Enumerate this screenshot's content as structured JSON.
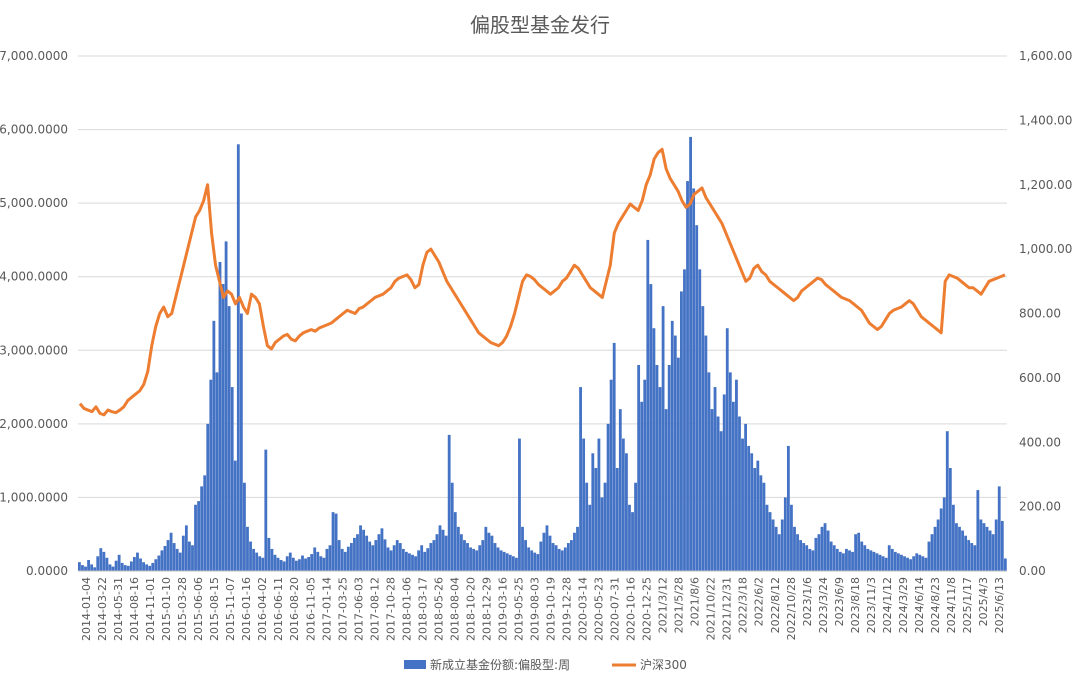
{
  "chart_data": {
    "type": "bar+line",
    "title": "偏股型基金发行",
    "legend_position": "bottom",
    "grid": true,
    "colors": {
      "bars": "#4472C4",
      "line": "#ED7D31",
      "grid": "#D9D9D9",
      "text": "#595959"
    },
    "y_left": {
      "range": [
        0,
        7000
      ],
      "ticks": [
        "0.0000",
        "1,000.0000",
        "2,000.0000",
        "3,000.0000",
        "4,000.0000",
        "5,000.0000",
        "6,000.0000",
        "7,000.0000"
      ]
    },
    "y_right": {
      "range": [
        0,
        1600
      ],
      "ticks": [
        "0.00",
        "200.00",
        "400.00",
        "600.00",
        "800.00",
        "1,000.00",
        "1,200.00",
        "1,400.00",
        "1,600.00"
      ]
    },
    "x_tick_labels": [
      "2014-01-04",
      "2014-03-22",
      "2014-05-31",
      "2014-08-16",
      "2014-11-01",
      "2015-01-10",
      "2015-03-28",
      "2015-06-06",
      "2015-08-15",
      "2015-11-07",
      "2016-01-16",
      "2016-04-02",
      "2016-06-11",
      "2016-08-20",
      "2016-11-05",
      "2017-01-14",
      "2017-03-25",
      "2017-06-03",
      "2017-08-12",
      "2017-10-28",
      "2018-01-06",
      "2018-03-17",
      "2018-05-26",
      "2018-08-04",
      "2018-10-20",
      "2018-12-29",
      "2019-03-16",
      "2019-05-25",
      "2019-08-03",
      "2019-10-19",
      "2019-12-28",
      "2020-03-14",
      "2020-05-23",
      "2020-07-31",
      "2020-10-16",
      "2020-12-25",
      "2021/3/12",
      "2021/5/28",
      "2021/8/6",
      "2021/10/22",
      "2021/12/31",
      "2022/3/18",
      "2022/6/2",
      "2022/8/12",
      "2022/10/28",
      "2023/1/6",
      "2023/3/24",
      "2023/6/9",
      "2023/8/18",
      "2023/11/3",
      "2024/1/12",
      "2024/3/29",
      "2024/6/14",
      "2024/8/23",
      "2024/11/8",
      "2025/1/17",
      "2025/4/3",
      "2025/6/13"
    ],
    "series": [
      {
        "name": "新成立基金份额:偏股型:周",
        "type": "bar",
        "axis": "left",
        "values": [
          120,
          80,
          60,
          150,
          90,
          50,
          200,
          310,
          260,
          180,
          90,
          60,
          140,
          220,
          110,
          80,
          70,
          130,
          190,
          250,
          170,
          120,
          90,
          70,
          110,
          160,
          210,
          280,
          340,
          420,
          520,
          380,
          300,
          250,
          480,
          620,
          400,
          350,
          900,
          950,
          1150,
          1300,
          2000,
          2600,
          3400,
          2700,
          4200,
          3900,
          4480,
          3600,
          2500,
          1500,
          5800,
          3500,
          1200,
          600,
          400,
          300,
          250,
          200,
          180,
          1650,
          450,
          300,
          220,
          180,
          150,
          130,
          200,
          250,
          180,
          140,
          160,
          210,
          170,
          190,
          230,
          320,
          260,
          200,
          180,
          300,
          350,
          800,
          780,
          420,
          300,
          260,
          330,
          380,
          450,
          500,
          620,
          560,
          480,
          400,
          350,
          420,
          500,
          580,
          430,
          320,
          280,
          350,
          420,
          380,
          300,
          260,
          240,
          220,
          200,
          280,
          350,
          260,
          310,
          380,
          420,
          500,
          620,
          560,
          480,
          1850,
          1200,
          800,
          600,
          500,
          420,
          380,
          320,
          300,
          280,
          350,
          420,
          600,
          520,
          480,
          380,
          320,
          280,
          260,
          240,
          220,
          200,
          180,
          1800,
          600,
          420,
          320,
          280,
          250,
          230,
          400,
          520,
          620,
          480,
          380,
          350,
          300,
          280,
          320,
          380,
          420,
          520,
          600,
          2500,
          1800,
          1200,
          900,
          1600,
          1400,
          1800,
          1000,
          1200,
          2000,
          2600,
          3100,
          1400,
          2200,
          1800,
          1600,
          900,
          800,
          1200,
          2800,
          2300,
          2600,
          4500,
          3900,
          3300,
          2800,
          2500,
          3600,
          2200,
          2800,
          3400,
          3200,
          2900,
          3800,
          4100,
          5300,
          5900,
          5200,
          4700,
          4100,
          3600,
          3200,
          2700,
          2200,
          2500,
          2100,
          1900,
          2400,
          3300,
          2700,
          2300,
          2600,
          2100,
          1800,
          2000,
          1700,
          1600,
          1400,
          1500,
          1300,
          1200,
          900,
          800,
          700,
          600,
          500,
          700,
          1000,
          1700,
          900,
          600,
          500,
          420,
          380,
          350,
          300,
          280,
          450,
          500,
          600,
          650,
          550,
          400,
          350,
          300,
          260,
          240,
          300,
          280,
          260,
          500,
          520,
          400,
          350,
          300,
          280,
          260,
          240,
          220,
          200,
          180,
          350,
          300,
          260,
          240,
          220,
          200,
          180,
          160,
          200,
          240,
          220,
          200,
          180,
          400,
          500,
          600,
          700,
          850,
          1000,
          1900,
          1400,
          900,
          650,
          600,
          550,
          480,
          420,
          380,
          350,
          1100,
          700,
          650,
          600,
          550,
          500,
          700,
          1150,
          680,
          170
        ]
      },
      {
        "name": "沪深300",
        "type": "line",
        "axis": "right",
        "values": [
          520,
          505,
          500,
          495,
          510,
          490,
          485,
          500,
          495,
          492,
          500,
          510,
          530,
          540,
          550,
          560,
          580,
          620,
          700,
          760,
          800,
          820,
          790,
          800,
          850,
          900,
          950,
          1000,
          1050,
          1100,
          1120,
          1150,
          1200,
          1050,
          950,
          900,
          850,
          870,
          860,
          830,
          850,
          820,
          800,
          860,
          850,
          830,
          760,
          700,
          690,
          710,
          720,
          730,
          735,
          720,
          715,
          730,
          740,
          745,
          750,
          745,
          755,
          760,
          765,
          770,
          780,
          790,
          800,
          810,
          805,
          800,
          815,
          820,
          830,
          840,
          850,
          855,
          860,
          870,
          880,
          900,
          910,
          915,
          920,
          905,
          880,
          890,
          950,
          990,
          1000,
          980,
          960,
          930,
          900,
          880,
          860,
          840,
          820,
          800,
          780,
          760,
          740,
          730,
          720,
          710,
          705,
          700,
          710,
          730,
          760,
          800,
          850,
          900,
          920,
          915,
          905,
          890,
          880,
          870,
          860,
          870,
          880,
          900,
          910,
          930,
          950,
          940,
          920,
          900,
          880,
          870,
          860,
          850,
          900,
          950,
          1050,
          1080,
          1100,
          1120,
          1140,
          1130,
          1120,
          1150,
          1200,
          1230,
          1280,
          1300,
          1310,
          1250,
          1220,
          1200,
          1180,
          1150,
          1130,
          1140,
          1170,
          1180,
          1190,
          1160,
          1140,
          1120,
          1100,
          1080,
          1050,
          1020,
          990,
          960,
          930,
          900,
          910,
          940,
          950,
          930,
          920,
          900,
          890,
          880,
          870,
          860,
          850,
          840,
          850,
          870,
          880,
          890,
          900,
          910,
          905,
          890,
          880,
          870,
          860,
          850,
          845,
          840,
          830,
          820,
          810,
          790,
          770,
          760,
          750,
          760,
          780,
          800,
          810,
          815,
          820,
          830,
          840,
          830,
          810,
          790,
          780,
          770,
          760,
          750,
          740,
          900,
          920,
          915,
          910,
          900,
          890,
          880,
          880,
          870,
          860,
          880,
          900,
          905,
          910,
          915,
          920
        ]
      }
    ]
  }
}
